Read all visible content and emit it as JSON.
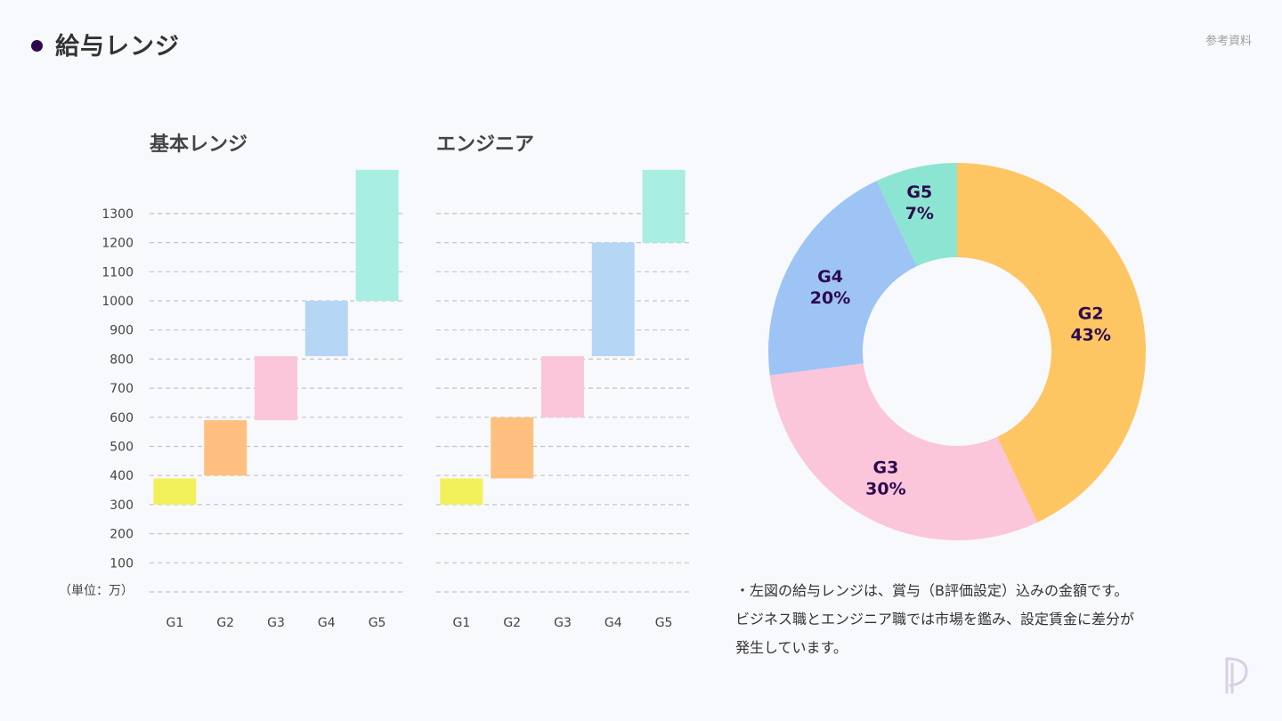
{
  "header": {
    "title": "給与レンジ",
    "corner": "参考資料"
  },
  "chart_data": [
    {
      "type": "bar",
      "title": "基本レンジ",
      "categories": [
        "G1",
        "G2",
        "G3",
        "G4",
        "G5"
      ],
      "ranges": [
        [
          300,
          390
        ],
        [
          400,
          590
        ],
        [
          590,
          810
        ],
        [
          810,
          1000
        ],
        [
          1000,
          1450
        ]
      ],
      "yticks": [
        100,
        200,
        300,
        400,
        500,
        600,
        700,
        800,
        900,
        1000,
        1100,
        1200,
        1300
      ],
      "unit_label": "（単位：万）",
      "colors": [
        "#f2f15c",
        "#ffc07f",
        "#fbc5da",
        "#b6d6f5",
        "#a8eee2"
      ]
    },
    {
      "type": "bar",
      "title": "エンジニア",
      "categories": [
        "G1",
        "G2",
        "G3",
        "G4",
        "G5"
      ],
      "ranges": [
        [
          300,
          390
        ],
        [
          390,
          600
        ],
        [
          600,
          810
        ],
        [
          810,
          1200
        ],
        [
          1200,
          1450
        ]
      ],
      "yticks": [
        100,
        200,
        300,
        400,
        500,
        600,
        700,
        800,
        900,
        1000,
        1100,
        1200,
        1300
      ],
      "colors": [
        "#f2f15c",
        "#ffc07f",
        "#fbc5da",
        "#b6d6f5",
        "#a8eee2"
      ]
    },
    {
      "type": "pie",
      "slices": [
        {
          "label": "G2",
          "value": 43,
          "text": "43%",
          "color": "#fec563"
        },
        {
          "label": "G3",
          "value": 30,
          "text": "30%",
          "color": "#fbc5da"
        },
        {
          "label": "G4",
          "value": 20,
          "text": "20%",
          "color": "#9ec3f5"
        },
        {
          "label": "G5",
          "value": 7,
          "text": "7%",
          "color": "#8ce5d2"
        }
      ],
      "label_color": "#2d0a4e"
    }
  ],
  "note": {
    "line1": "・左図の給与レンジは、賞与（B評価設定）込みの金額です。",
    "line2": "ビジネス職とエンジニア職では市場を鑑み、設定賃金に差分が",
    "line3": "発生しています。"
  }
}
